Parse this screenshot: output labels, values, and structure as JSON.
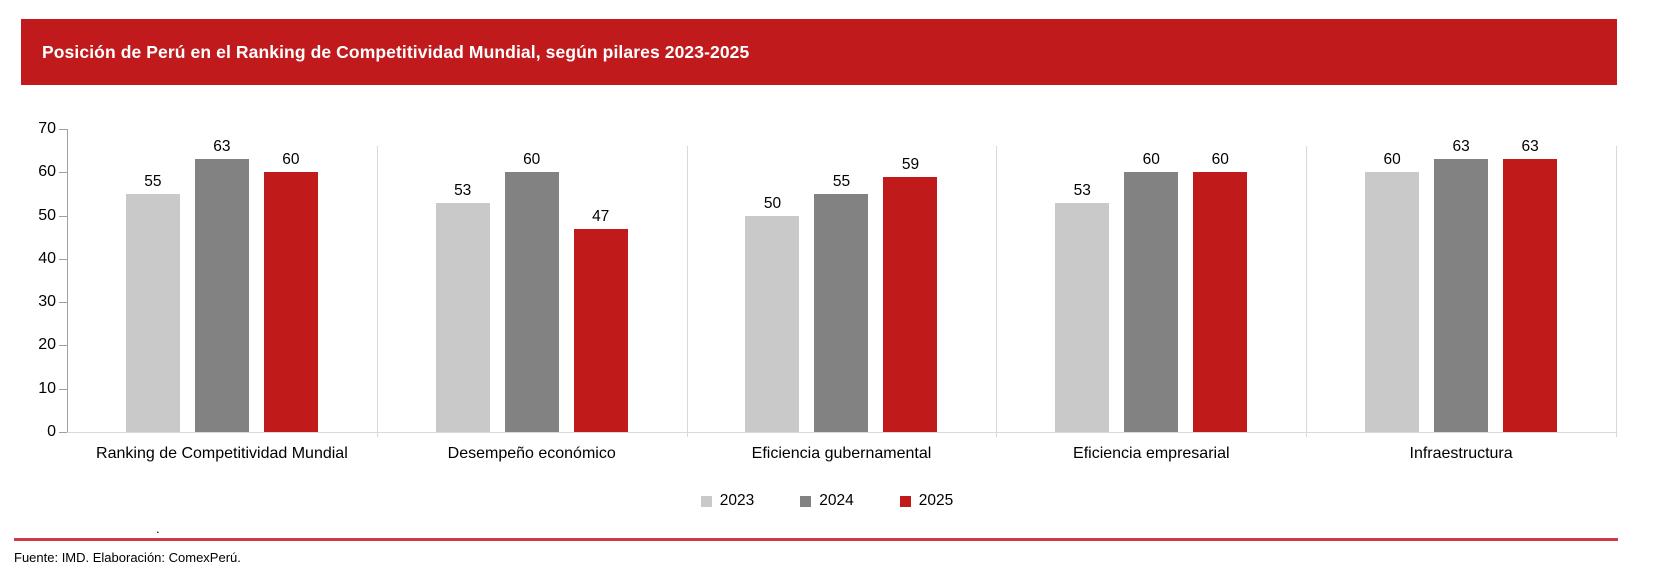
{
  "banner": {
    "title": "Posición de Perú en el Ranking de Competitividad Mundial, según pilares 2023-2025",
    "bg_color": "#C11A1D",
    "text_color": "#FFFFFF"
  },
  "chart_data": {
    "type": "bar",
    "title": "Posición de Perú en el Ranking de Competitividad Mundial, según pilares 2023-2025",
    "categories": [
      "Ranking de Competitividad Mundial",
      "Desempeño económico",
      "Eficiencia gubernamental",
      "Eficiencia empresarial",
      "Infraestructura"
    ],
    "series": [
      {
        "name": "2023",
        "color": "#C9C9C9",
        "values": [
          55,
          53,
          50,
          53,
          60
        ]
      },
      {
        "name": "2024",
        "color": "#828282",
        "values": [
          63,
          60,
          55,
          60,
          63
        ]
      },
      {
        "name": "2025",
        "color": "#C11A1B",
        "values": [
          60,
          47,
          59,
          60,
          63
        ]
      }
    ],
    "ylim": [
      0,
      70
    ],
    "yticks": [
      0,
      10,
      20,
      30,
      40,
      50,
      60,
      70
    ],
    "data_labels": true,
    "grid": false,
    "legend_position": "bottom",
    "axis_color": "#A0A0A0",
    "separator_color": "#D9D9D9"
  },
  "footer": {
    "stray_dot": ".",
    "rule_color": "#CC3B43",
    "source_text": "Fuente: IMD. Elaboración: ComexPerú."
  }
}
